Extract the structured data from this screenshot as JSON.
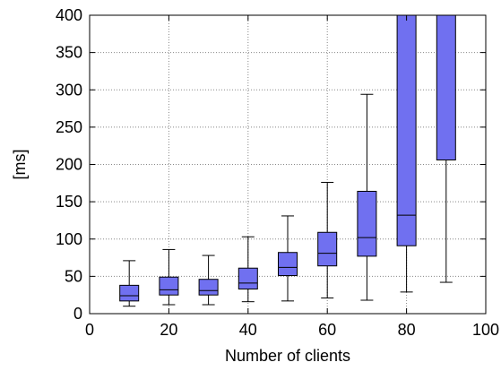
{
  "chart_data": {
    "type": "box",
    "xlabel": "Number of clients",
    "ylabel": "[ms]",
    "xlim": [
      0,
      100
    ],
    "ylim": [
      0,
      400
    ],
    "x_ticks": [
      0,
      20,
      40,
      60,
      80,
      100
    ],
    "y_ticks": [
      0,
      50,
      100,
      150,
      200,
      250,
      300,
      350,
      400
    ],
    "grid": true,
    "box_color": "#7070f0",
    "boxes": [
      {
        "x": 10,
        "whisker_low": 10,
        "q1": 17,
        "median": 24,
        "q3": 38,
        "whisker_high": 71
      },
      {
        "x": 20,
        "whisker_low": 12,
        "q1": 25,
        "median": 32,
        "q3": 49,
        "whisker_high": 86
      },
      {
        "x": 30,
        "whisker_low": 12,
        "q1": 25,
        "median": 31,
        "q3": 46,
        "whisker_high": 78
      },
      {
        "x": 40,
        "whisker_low": 16,
        "q1": 33,
        "median": 41,
        "q3": 61,
        "whisker_high": 103
      },
      {
        "x": 50,
        "whisker_low": 17,
        "q1": 51,
        "median": 62,
        "q3": 82,
        "whisker_high": 131
      },
      {
        "x": 60,
        "whisker_low": 21,
        "q1": 64,
        "median": 81,
        "q3": 109,
        "whisker_high": 176
      },
      {
        "x": 70,
        "whisker_low": 18,
        "q1": 77,
        "median": 102,
        "q3": 164,
        "whisker_high": 294
      },
      {
        "x": 80,
        "whisker_low": 29,
        "q1": 91,
        "median": 132,
        "q3": 400,
        "whisker_high": 400
      },
      {
        "x": 90,
        "whisker_low": 42,
        "q1": 206,
        "median": 400,
        "q3": 400,
        "whisker_high": 400
      }
    ]
  }
}
